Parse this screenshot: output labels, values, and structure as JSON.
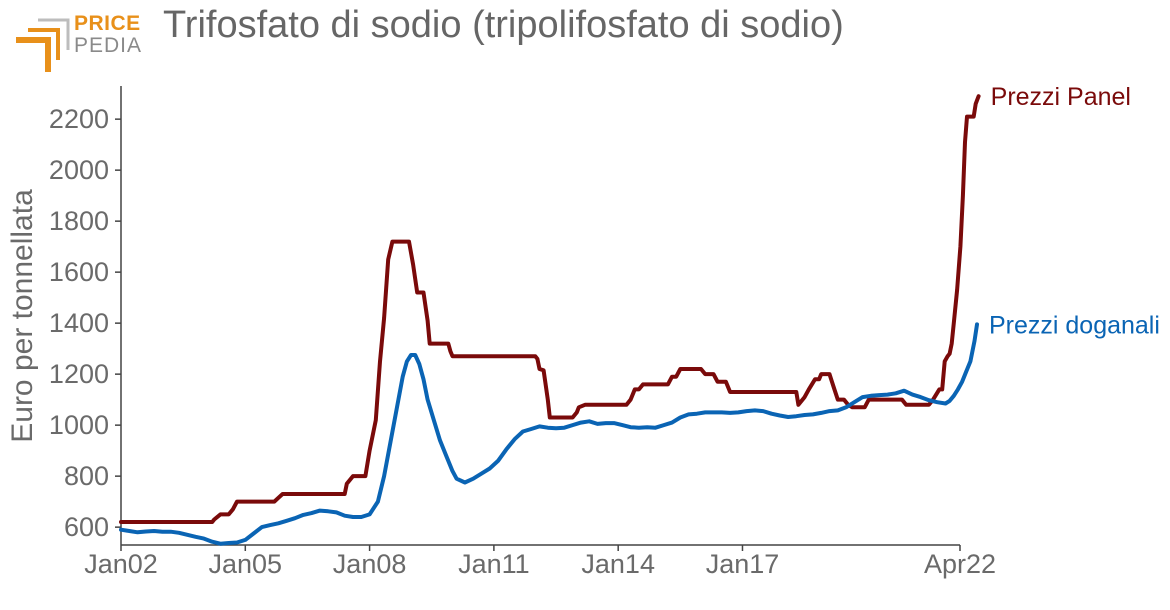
{
  "logo": {
    "line1": "PRICE",
    "line2": "PEDIA"
  },
  "chart_data": {
    "type": "line",
    "title": "Trifosfato di sodio (tripolifosfato di sodio)",
    "ylabel": "Euro per tonnellata",
    "xlabel": "",
    "ylim": [
      530,
      2330
    ],
    "xlim": [
      2002.0,
      2022.25
    ],
    "yticks": [
      600,
      800,
      1000,
      1200,
      1400,
      1600,
      1800,
      2000,
      2200
    ],
    "xticks": [
      {
        "value": 2002.0,
        "label": "Jan02"
      },
      {
        "value": 2005.0,
        "label": "Jan05"
      },
      {
        "value": 2008.0,
        "label": "Jan08"
      },
      {
        "value": 2011.0,
        "label": "Jan11"
      },
      {
        "value": 2014.0,
        "label": "Jan14"
      },
      {
        "value": 2017.0,
        "label": "Jan17"
      },
      {
        "value": 2022.25,
        "label": "Apr22"
      }
    ],
    "grid": false,
    "series": [
      {
        "name": "Prezzi Panel",
        "color": "#7a0a0a",
        "points": [
          [
            2002.0,
            620
          ],
          [
            2004.2,
            620
          ],
          [
            2004.25,
            630
          ],
          [
            2004.4,
            650
          ],
          [
            2004.6,
            650
          ],
          [
            2004.7,
            670
          ],
          [
            2004.8,
            700
          ],
          [
            2005.2,
            700
          ],
          [
            2005.5,
            700
          ],
          [
            2005.7,
            700
          ],
          [
            2005.8,
            715
          ],
          [
            2005.9,
            730
          ],
          [
            2006.3,
            730
          ],
          [
            2006.8,
            730
          ],
          [
            2007.0,
            730
          ],
          [
            2007.4,
            730
          ],
          [
            2007.45,
            770
          ],
          [
            2007.6,
            800
          ],
          [
            2007.9,
            800
          ],
          [
            2008.0,
            900
          ],
          [
            2008.15,
            1020
          ],
          [
            2008.25,
            1250
          ],
          [
            2008.35,
            1420
          ],
          [
            2008.45,
            1650
          ],
          [
            2008.55,
            1720
          ],
          [
            2008.95,
            1720
          ],
          [
            2009.05,
            1630
          ],
          [
            2009.15,
            1520
          ],
          [
            2009.3,
            1520
          ],
          [
            2009.4,
            1410
          ],
          [
            2009.45,
            1320
          ],
          [
            2009.9,
            1320
          ],
          [
            2009.95,
            1290
          ],
          [
            2010.0,
            1270
          ],
          [
            2011.0,
            1270
          ],
          [
            2012.0,
            1270
          ],
          [
            2012.05,
            1260
          ],
          [
            2012.1,
            1220
          ],
          [
            2012.2,
            1215
          ],
          [
            2012.3,
            1100
          ],
          [
            2012.35,
            1030
          ],
          [
            2012.9,
            1030
          ],
          [
            2013.0,
            1050
          ],
          [
            2013.05,
            1070
          ],
          [
            2013.2,
            1080
          ],
          [
            2014.2,
            1080
          ],
          [
            2014.3,
            1100
          ],
          [
            2014.4,
            1140
          ],
          [
            2014.5,
            1140
          ],
          [
            2014.6,
            1160
          ],
          [
            2015.2,
            1160
          ],
          [
            2015.3,
            1190
          ],
          [
            2015.4,
            1190
          ],
          [
            2015.5,
            1220
          ],
          [
            2016.0,
            1220
          ],
          [
            2016.1,
            1200
          ],
          [
            2016.3,
            1200
          ],
          [
            2016.4,
            1170
          ],
          [
            2016.6,
            1170
          ],
          [
            2016.7,
            1130
          ],
          [
            2018.3,
            1130
          ],
          [
            2018.35,
            1080
          ],
          [
            2018.5,
            1110
          ],
          [
            2018.6,
            1140
          ],
          [
            2018.75,
            1180
          ],
          [
            2018.85,
            1180
          ],
          [
            2018.9,
            1200
          ],
          [
            2019.1,
            1200
          ],
          [
            2019.2,
            1150
          ],
          [
            2019.3,
            1100
          ],
          [
            2019.45,
            1100
          ],
          [
            2019.55,
            1080
          ],
          [
            2019.65,
            1070
          ],
          [
            2019.95,
            1070
          ],
          [
            2020.05,
            1100
          ],
          [
            2020.25,
            1100
          ],
          [
            2020.85,
            1100
          ],
          [
            2020.95,
            1080
          ],
          [
            2021.5,
            1080
          ],
          [
            2021.6,
            1100
          ],
          [
            2021.75,
            1140
          ],
          [
            2021.82,
            1140
          ],
          [
            2021.88,
            1250
          ],
          [
            2021.95,
            1270
          ],
          [
            2022.0,
            1280
          ],
          [
            2022.05,
            1320
          ],
          [
            2022.1,
            1400
          ],
          [
            2022.18,
            1530
          ],
          [
            2022.26,
            1700
          ],
          [
            2022.32,
            1900
          ],
          [
            2022.37,
            2110
          ],
          [
            2022.42,
            2210
          ],
          [
            2022.58,
            2210
          ],
          [
            2022.63,
            2260
          ],
          [
            2022.7,
            2290
          ]
        ]
      },
      {
        "name": "Prezzi doganali",
        "color": "#0a64b4",
        "points": [
          [
            2002.0,
            590
          ],
          [
            2002.2,
            585
          ],
          [
            2002.4,
            580
          ],
          [
            2002.6,
            583
          ],
          [
            2002.8,
            585
          ],
          [
            2003.0,
            582
          ],
          [
            2003.2,
            582
          ],
          [
            2003.4,
            578
          ],
          [
            2003.6,
            570
          ],
          [
            2003.8,
            562
          ],
          [
            2004.0,
            555
          ],
          [
            2004.2,
            543
          ],
          [
            2004.4,
            535
          ],
          [
            2004.6,
            538
          ],
          [
            2004.8,
            540
          ],
          [
            2005.0,
            550
          ],
          [
            2005.2,
            575
          ],
          [
            2005.4,
            600
          ],
          [
            2005.6,
            608
          ],
          [
            2005.8,
            615
          ],
          [
            2006.0,
            625
          ],
          [
            2006.2,
            635
          ],
          [
            2006.4,
            648
          ],
          [
            2006.6,
            655
          ],
          [
            2006.8,
            665
          ],
          [
            2007.0,
            662
          ],
          [
            2007.2,
            658
          ],
          [
            2007.4,
            645
          ],
          [
            2007.6,
            640
          ],
          [
            2007.8,
            640
          ],
          [
            2008.0,
            650
          ],
          [
            2008.2,
            700
          ],
          [
            2008.35,
            800
          ],
          [
            2008.5,
            930
          ],
          [
            2008.65,
            1060
          ],
          [
            2008.8,
            1190
          ],
          [
            2008.9,
            1250
          ],
          [
            2009.0,
            1275
          ],
          [
            2009.1,
            1275
          ],
          [
            2009.2,
            1240
          ],
          [
            2009.3,
            1180
          ],
          [
            2009.4,
            1100
          ],
          [
            2009.55,
            1020
          ],
          [
            2009.7,
            940
          ],
          [
            2009.85,
            880
          ],
          [
            2010.0,
            820
          ],
          [
            2010.1,
            790
          ],
          [
            2010.3,
            775
          ],
          [
            2010.5,
            790
          ],
          [
            2010.7,
            810
          ],
          [
            2010.9,
            830
          ],
          [
            2011.1,
            860
          ],
          [
            2011.3,
            905
          ],
          [
            2011.5,
            945
          ],
          [
            2011.7,
            975
          ],
          [
            2011.9,
            985
          ],
          [
            2012.1,
            995
          ],
          [
            2012.3,
            990
          ],
          [
            2012.5,
            988
          ],
          [
            2012.7,
            990
          ],
          [
            2012.9,
            1000
          ],
          [
            2013.1,
            1010
          ],
          [
            2013.3,
            1015
          ],
          [
            2013.5,
            1005
          ],
          [
            2013.7,
            1008
          ],
          [
            2013.9,
            1008
          ],
          [
            2014.1,
            1000
          ],
          [
            2014.3,
            992
          ],
          [
            2014.5,
            990
          ],
          [
            2014.7,
            992
          ],
          [
            2014.9,
            990
          ],
          [
            2015.1,
            1000
          ],
          [
            2015.3,
            1010
          ],
          [
            2015.5,
            1030
          ],
          [
            2015.7,
            1042
          ],
          [
            2015.9,
            1045
          ],
          [
            2016.1,
            1050
          ],
          [
            2016.3,
            1050
          ],
          [
            2016.5,
            1050
          ],
          [
            2016.7,
            1048
          ],
          [
            2016.9,
            1050
          ],
          [
            2017.1,
            1055
          ],
          [
            2017.3,
            1058
          ],
          [
            2017.5,
            1055
          ],
          [
            2017.7,
            1045
          ],
          [
            2017.9,
            1038
          ],
          [
            2018.1,
            1032
          ],
          [
            2018.3,
            1035
          ],
          [
            2018.5,
            1040
          ],
          [
            2018.7,
            1042
          ],
          [
            2018.9,
            1048
          ],
          [
            2019.1,
            1055
          ],
          [
            2019.3,
            1058
          ],
          [
            2019.5,
            1070
          ],
          [
            2019.7,
            1090
          ],
          [
            2019.9,
            1110
          ],
          [
            2020.1,
            1115
          ],
          [
            2020.3,
            1118
          ],
          [
            2020.5,
            1120
          ],
          [
            2020.7,
            1125
          ],
          [
            2020.9,
            1135
          ],
          [
            2021.1,
            1120
          ],
          [
            2021.3,
            1110
          ],
          [
            2021.5,
            1098
          ],
          [
            2021.7,
            1090
          ],
          [
            2021.9,
            1085
          ],
          [
            2022.0,
            1095
          ],
          [
            2022.1,
            1115
          ],
          [
            2022.2,
            1140
          ],
          [
            2022.3,
            1170
          ],
          [
            2022.4,
            1210
          ],
          [
            2022.5,
            1250
          ],
          [
            2022.6,
            1330
          ],
          [
            2022.66,
            1395
          ]
        ]
      }
    ]
  }
}
